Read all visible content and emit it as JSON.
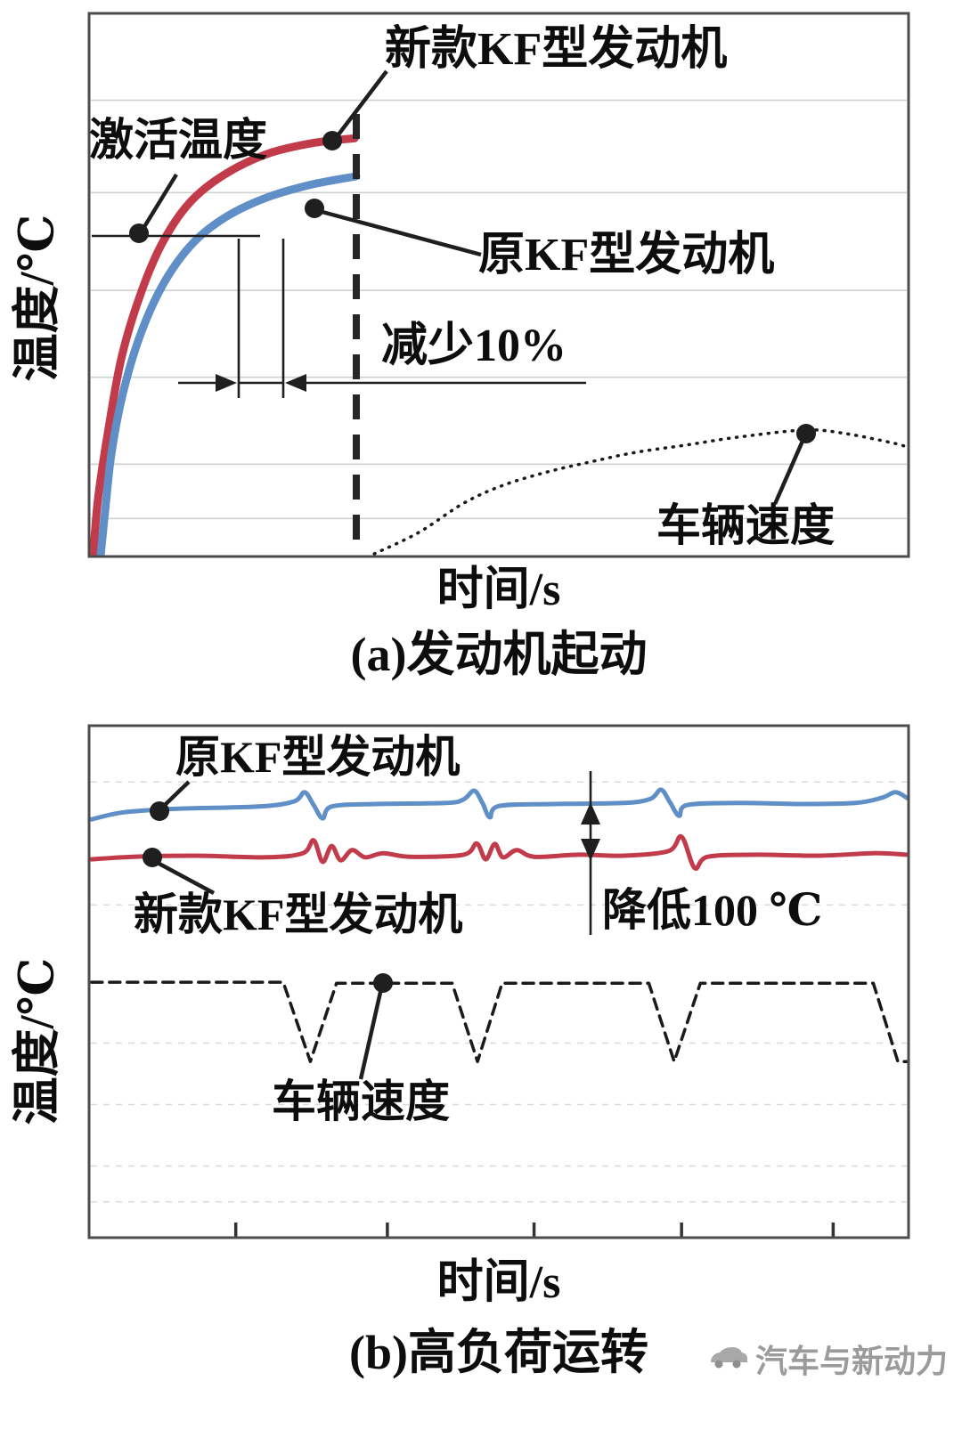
{
  "figure": {
    "background": "#ffffff"
  },
  "watermark": {
    "text": "汽车与新动力",
    "icon": "car-icon",
    "color": "#9b9b9b"
  },
  "colors": {
    "new_engine_red": "#c23b4a",
    "old_engine_blue": "#5f8fc6",
    "speed_black": "#1a1a1a",
    "grid": "#ccd3cb"
  },
  "chart_data": [
    {
      "id": "a",
      "type": "line",
      "caption": "(a)发动机起动",
      "xlabel": "时间/s",
      "ylabel": "温度/℃",
      "x_axis_scale": "unlabeled",
      "y_axis_scale": "unlabeled",
      "grid": "horizontal-light",
      "ygrid": [
        7,
        17,
        33,
        49,
        67,
        84
      ],
      "annotations": {
        "activation": "激活温度",
        "new_engine": "新款KF型发动机",
        "old_engine": "原KF型发动机",
        "reduction": "减少10%",
        "vehicle_speed": "车辆速度"
      },
      "series": [
        {
          "name": "新款KF型发动机",
          "key": "new-kf",
          "color": "#c23b4a",
          "dash": "solid",
          "width": 9,
          "smooth": true,
          "points": [
            [
              0.5,
              0
            ],
            [
              1.1,
              10.7
            ],
            [
              2.4,
              23.8
            ],
            [
              4.0,
              36.9
            ],
            [
              6.3,
              48.4
            ],
            [
              9.0,
              57.9
            ],
            [
              12.3,
              65.2
            ],
            [
              16.5,
              70.3
            ],
            [
              21.7,
              74.1
            ],
            [
              27.2,
              76.1
            ],
            [
              32.4,
              77.0
            ]
          ]
        },
        {
          "name": "原KF型发动机",
          "key": "old-kf",
          "color": "#5f8fc6",
          "dash": "solid",
          "width": 9,
          "smooth": true,
          "points": [
            [
              1.4,
              0
            ],
            [
              2.0,
              9.0
            ],
            [
              2.8,
              19.7
            ],
            [
              4.3,
              31.1
            ],
            [
              6.5,
              41.8
            ],
            [
              9.3,
              50.8
            ],
            [
              12.8,
              57.9
            ],
            [
              16.8,
              62.6
            ],
            [
              21.7,
              66.1
            ],
            [
              27.2,
              68.5
            ],
            [
              32.6,
              70.0
            ]
          ]
        },
        {
          "name": "车辆速度",
          "key": "vehicle-speed",
          "color": "#1a1a1a",
          "dash": "dotted",
          "width": 3.5,
          "smooth": true,
          "points": [
            [
              34.8,
              0.5
            ],
            [
              40.2,
              4.4
            ],
            [
              45.7,
              9.8
            ],
            [
              50.5,
              13.1
            ],
            [
              56.0,
              15.6
            ],
            [
              61.4,
              17.5
            ],
            [
              66.8,
              19.2
            ],
            [
              72.8,
              20.5
            ],
            [
              79.3,
              22.0
            ],
            [
              87.5,
              23.3
            ],
            [
              92.4,
              22.6
            ],
            [
              97.8,
              21.0
            ],
            [
              99.8,
              20.2
            ]
          ]
        }
      ]
    },
    {
      "id": "b",
      "type": "line",
      "caption": "(b)高负荷运转",
      "xlabel": "时间/s",
      "ylabel": "温度/℃",
      "x_axis_scale": "unlabeled",
      "y_axis_scale": "unlabeled",
      "grid": "horizontal-faint-dashed",
      "ygrid": [
        89,
        65,
        38,
        26,
        14,
        7
      ],
      "xticks": [
        17.9,
        36.4,
        54.3,
        72.3,
        90.8
      ],
      "annotations": {
        "old_engine": "原KF型发动机",
        "new_engine": "新款KF型发动机",
        "reduction": "降低100 ℃",
        "vehicle_speed": "车辆速度"
      },
      "series": [
        {
          "name": "原KF型发动机",
          "key": "old-kf",
          "color": "#5f8fc6",
          "dash": "solid",
          "width": 5,
          "smooth": true,
          "points": [
            [
              0.3,
              81.7
            ],
            [
              4.3,
              83.1
            ],
            [
              10.9,
              83.8
            ],
            [
              20.7,
              84.2
            ],
            [
              25.0,
              85.2
            ],
            [
              26.3,
              87.0
            ],
            [
              27.4,
              84.5
            ],
            [
              28.5,
              81.9
            ],
            [
              29.6,
              84.2
            ],
            [
              34.8,
              84.7
            ],
            [
              43.5,
              84.9
            ],
            [
              45.7,
              85.6
            ],
            [
              47.0,
              87.3
            ],
            [
              48.0,
              84.9
            ],
            [
              48.9,
              82.1
            ],
            [
              50.0,
              84.3
            ],
            [
              56.5,
              84.7
            ],
            [
              65.2,
              84.9
            ],
            [
              68.5,
              85.7
            ],
            [
              69.8,
              87.5
            ],
            [
              70.9,
              85.0
            ],
            [
              72.0,
              82.4
            ],
            [
              73.0,
              84.5
            ],
            [
              79.3,
              84.9
            ],
            [
              87.0,
              84.7
            ],
            [
              93.5,
              84.9
            ],
            [
              96.7,
              85.9
            ],
            [
              98.4,
              87.0
            ],
            [
              99.8,
              85.9
            ]
          ]
        },
        {
          "name": "新款KF型发动机",
          "key": "new-kf",
          "color": "#c23b4a",
          "dash": "solid",
          "width": 5,
          "smooth": true,
          "points": [
            [
              0.3,
              73.9
            ],
            [
              5.4,
              74.4
            ],
            [
              13.0,
              74.6
            ],
            [
              21.7,
              74.3
            ],
            [
              26.1,
              75.1
            ],
            [
              27.4,
              77.6
            ],
            [
              28.5,
              73.4
            ],
            [
              29.6,
              76.5
            ],
            [
              30.7,
              73.7
            ],
            [
              32.1,
              75.7
            ],
            [
              33.7,
              74.3
            ],
            [
              35.9,
              75.1
            ],
            [
              39.1,
              74.4
            ],
            [
              45.7,
              74.8
            ],
            [
              47.3,
              77.0
            ],
            [
              48.4,
              73.9
            ],
            [
              49.5,
              76.9
            ],
            [
              50.5,
              74.3
            ],
            [
              52.2,
              75.7
            ],
            [
              54.3,
              74.4
            ],
            [
              59.8,
              74.8
            ],
            [
              65.2,
              74.6
            ],
            [
              70.7,
              75.5
            ],
            [
              72.3,
              78.3
            ],
            [
              73.9,
              72.2
            ],
            [
              75.5,
              74.4
            ],
            [
              81.5,
              74.8
            ],
            [
              89.1,
              74.6
            ],
            [
              95.7,
              75.1
            ],
            [
              99.8,
              74.8
            ]
          ]
        },
        {
          "name": "车辆速度",
          "key": "vehicle-speed",
          "color": "#1a1a1a",
          "dash": "dashed",
          "width": 3.5,
          "smooth": false,
          "points": [
            [
              0.3,
              49.9
            ],
            [
              23.7,
              49.9
            ],
            [
              27.0,
              34.4
            ],
            [
              30.2,
              49.7
            ],
            [
              44.3,
              49.7
            ],
            [
              47.4,
              34.4
            ],
            [
              50.4,
              49.7
            ],
            [
              68.3,
              49.7
            ],
            [
              71.4,
              34.4
            ],
            [
              74.6,
              49.7
            ],
            [
              95.7,
              49.7
            ],
            [
              98.7,
              34.4
            ],
            [
              99.8,
              34.4
            ]
          ]
        }
      ]
    }
  ]
}
